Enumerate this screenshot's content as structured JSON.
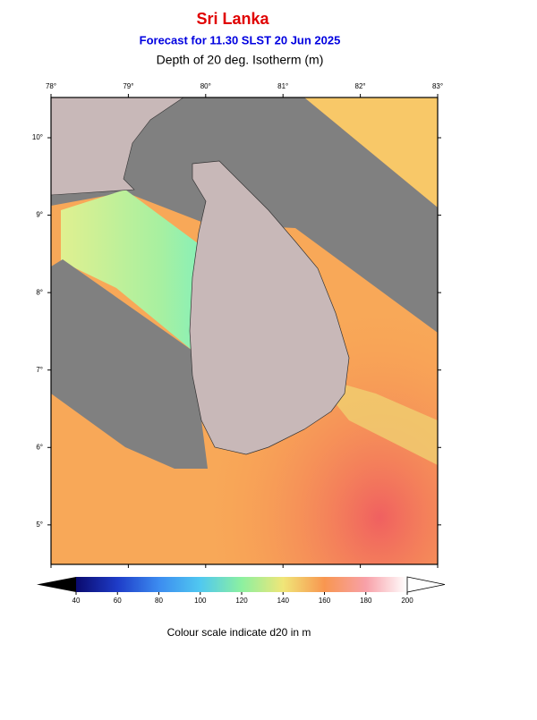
{
  "header": {
    "title": "Sri Lanka",
    "subtitle": "Forecast for  11.30 SLST 20 Jun 2025",
    "variable": "Depth of 20 deg. Isotherm (m)"
  },
  "map": {
    "xlim": [
      78,
      83
    ],
    "ylim": [
      4.49,
      10.52
    ],
    "xticks": [
      {
        "value": 78,
        "label": "78°"
      },
      {
        "value": 79,
        "label": "79°"
      },
      {
        "value": 80,
        "label": "80°"
      },
      {
        "value": 81,
        "label": "81°"
      },
      {
        "value": 82,
        "label": "82°"
      },
      {
        "value": 83,
        "label": "83°"
      }
    ],
    "yticks": [
      {
        "value": 5,
        "label": "5°"
      },
      {
        "value": 6,
        "label": "6°"
      },
      {
        "value": 7,
        "label": "7°"
      },
      {
        "value": 8,
        "label": "8°"
      },
      {
        "value": 9,
        "label": "9°"
      },
      {
        "value": 10,
        "label": "10°"
      }
    ]
  },
  "colorbar": {
    "range": [
      40,
      200
    ],
    "ticks": [
      40,
      60,
      80,
      100,
      120,
      140,
      160,
      180,
      200
    ],
    "caption": "Colour scale indicate d20 in m"
  }
}
